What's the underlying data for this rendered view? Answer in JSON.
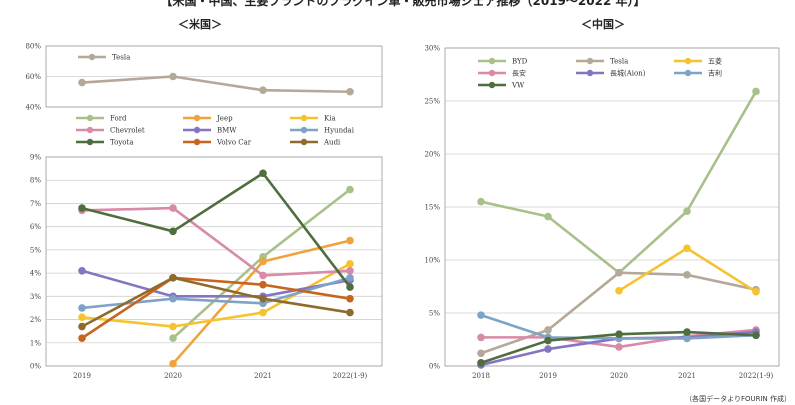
{
  "figure": {
    "title": "【米国・中国、主要ブランドのプラグイン車・販売市場シェア推移（2019～2022 年）】",
    "source": "（各国データよりFOURIN 作成）"
  },
  "chart_data": [
    {
      "id": "us_top",
      "type": "line",
      "subtitle": "＜米国＞",
      "categories": [
        "2019",
        "2020",
        "2021",
        "2022(1-9)"
      ],
      "ylim": [
        40,
        80
      ],
      "y_ticks": [
        40,
        60,
        80
      ],
      "y_tick_labels": [
        "40%",
        "60%",
        "80%"
      ],
      "grid": true,
      "legend": "top-left",
      "series": [
        {
          "name": "Tesla",
          "color": "#b5a898",
          "values": [
            56,
            60,
            51,
            50
          ]
        }
      ]
    },
    {
      "id": "us_bottom",
      "type": "line",
      "categories": [
        "2019",
        "2020",
        "2021",
        "2022(1-9)"
      ],
      "x_tick_labels": [
        "2019",
        "2020",
        "2021",
        "2022(1-9)"
      ],
      "ylim": [
        0,
        9
      ],
      "y_ticks": [
        0,
        1,
        2,
        3,
        4,
        5,
        6,
        7,
        8,
        9
      ],
      "y_tick_labels": [
        "0%",
        "1%",
        "2%",
        "3%",
        "4%",
        "5%",
        "6%",
        "7%",
        "8%",
        "9%"
      ],
      "grid": true,
      "legend": "top",
      "series": [
        {
          "name": "Ford",
          "color": "#a8c08a",
          "values": [
            null,
            1.2,
            4.7,
            7.6
          ]
        },
        {
          "name": "Jeep",
          "color": "#f0a33c",
          "values": [
            null,
            0.1,
            4.5,
            5.4
          ]
        },
        {
          "name": "Kia",
          "color": "#f5c230",
          "values": [
            2.1,
            1.7,
            2.3,
            4.4
          ]
        },
        {
          "name": "Chevrolet",
          "color": "#d98aa8",
          "values": [
            6.7,
            6.8,
            3.9,
            4.1
          ]
        },
        {
          "name": "BMW",
          "color": "#8474c2",
          "values": [
            4.1,
            3.0,
            3.0,
            3.7
          ]
        },
        {
          "name": "Hyundai",
          "color": "#7ea3c7",
          "values": [
            2.5,
            2.9,
            2.7,
            3.8
          ]
        },
        {
          "name": "Toyota",
          "color": "#4f6e3e",
          "values": [
            6.8,
            5.8,
            8.3,
            3.4
          ]
        },
        {
          "name": "Volvo Car",
          "color": "#c8641e",
          "values": [
            1.2,
            3.8,
            3.5,
            2.9
          ]
        },
        {
          "name": "Audi",
          "color": "#8e6b2c",
          "values": [
            1.7,
            3.8,
            2.9,
            2.3
          ]
        }
      ]
    },
    {
      "id": "china",
      "type": "line",
      "subtitle": "＜中国＞",
      "categories": [
        "2018",
        "2019",
        "2020",
        "2021",
        "2022(1-9)"
      ],
      "x_tick_labels": [
        "2018",
        "2019",
        "2020",
        "2021",
        "2022(1-9)"
      ],
      "ylim": [
        0,
        30
      ],
      "y_ticks": [
        0,
        5,
        10,
        15,
        20,
        25,
        30
      ],
      "y_tick_labels": [
        "0%",
        "5%",
        "10%",
        "15%",
        "20%",
        "25%",
        "30%"
      ],
      "grid": true,
      "legend": "top-left",
      "series": [
        {
          "name": "BYD",
          "color": "#a8c08a",
          "values": [
            15.5,
            14.1,
            8.8,
            14.6,
            25.9
          ]
        },
        {
          "name": "Tesla",
          "color": "#b5a898",
          "values": [
            1.2,
            3.4,
            8.8,
            8.6,
            7.2
          ]
        },
        {
          "name": "五菱",
          "color": "#f5c230",
          "values": [
            null,
            null,
            7.1,
            11.1,
            7.0
          ]
        },
        {
          "name": "長安",
          "color": "#d98aa8",
          "values": [
            2.7,
            2.7,
            1.8,
            2.8,
            3.4
          ]
        },
        {
          "name": "長城(Aion)",
          "color": "#8474c2",
          "values": [
            0.1,
            1.6,
            2.6,
            2.7,
            3.2
          ]
        },
        {
          "name": "吉利",
          "color": "#7ea3c7",
          "values": [
            4.8,
            2.7,
            2.6,
            2.6,
            2.9
          ]
        },
        {
          "name": "VW",
          "color": "#4f6e3e",
          "values": [
            0.3,
            2.4,
            3.0,
            3.2,
            2.9
          ]
        }
      ]
    }
  ]
}
